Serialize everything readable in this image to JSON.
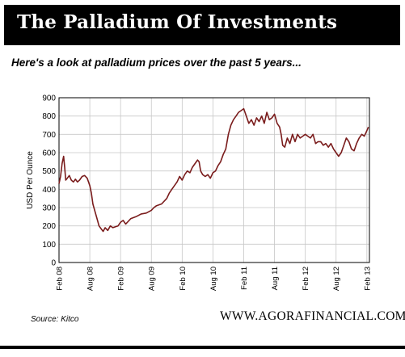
{
  "header": {
    "title": "The Palladium Of Investments"
  },
  "subtitle": "Here's a look at palladium prices over the past 5 years...",
  "source": "Source: Kitco",
  "brand": "WWW.AGORAFINANCIAL.COM",
  "chart_data": {
    "type": "line",
    "title": "",
    "xlabel": "",
    "ylabel": "USD Per Ounce",
    "ylim": [
      0,
      900
    ],
    "yticks": [
      0,
      100,
      200,
      300,
      400,
      500,
      600,
      700,
      800,
      900
    ],
    "xlim": [
      0,
      60.5
    ],
    "xticks": [
      {
        "label": "Feb 08",
        "x": 0
      },
      {
        "label": "Aug 08",
        "x": 6
      },
      {
        "label": "Feb 09",
        "x": 12
      },
      {
        "label": "Aug 09",
        "x": 18
      },
      {
        "label": "Feb 10",
        "x": 24
      },
      {
        "label": "Aug 10",
        "x": 30
      },
      {
        "label": "Feb 11",
        "x": 36
      },
      {
        "label": "Aug 11",
        "x": 42
      },
      {
        "label": "Feb 12",
        "x": 48
      },
      {
        "label": "Aug 12",
        "x": 54
      },
      {
        "label": "Feb 13",
        "x": 60
      }
    ],
    "grid": true,
    "line_color": "#7a1c1c",
    "series": [
      {
        "name": "",
        "x": [
          0,
          0.3,
          0.6,
          0.9,
          1.1,
          1.3,
          1.6,
          2,
          2.4,
          2.8,
          3.2,
          3.6,
          4,
          4.5,
          5,
          5.5,
          6,
          6.3,
          6.6,
          7,
          7.4,
          7.8,
          8.2,
          8.6,
          9,
          9.5,
          10,
          10.5,
          11,
          11.5,
          12,
          12.5,
          13,
          13.5,
          14,
          15,
          16,
          17,
          18,
          18.5,
          19,
          20,
          21,
          21.5,
          22,
          22.5,
          23,
          23.5,
          24,
          24.5,
          25,
          25.5,
          26,
          26.5,
          27,
          27.3,
          27.6,
          28,
          28.5,
          29,
          29.5,
          30,
          30.5,
          31,
          31.5,
          32,
          32.5,
          33,
          33.5,
          34,
          34.5,
          35,
          35.5,
          36,
          36.5,
          37,
          37.5,
          38,
          38.5,
          39,
          39.5,
          40,
          40.5,
          41,
          41.5,
          42,
          42.5,
          43,
          43.3,
          43.6,
          44,
          44.5,
          45,
          45.5,
          46,
          46.5,
          47,
          47.5,
          48,
          48.5,
          49,
          49.5,
          50,
          50.5,
          51,
          51.5,
          52,
          52.5,
          53,
          53.5,
          54,
          54.5,
          55,
          55.5,
          56,
          56.5,
          57,
          57.5,
          58,
          58.5,
          59,
          59.5,
          60,
          60.3
        ],
        "y": [
          430,
          470,
          540,
          580,
          520,
          450,
          460,
          475,
          450,
          440,
          455,
          440,
          450,
          470,
          475,
          460,
          420,
          380,
          320,
          280,
          240,
          200,
          185,
          170,
          190,
          175,
          200,
          190,
          195,
          200,
          220,
          230,
          210,
          225,
          240,
          250,
          265,
          270,
          285,
          300,
          310,
          320,
          350,
          380,
          400,
          420,
          440,
          470,
          450,
          480,
          500,
          490,
          520,
          540,
          560,
          550,
          500,
          480,
          470,
          480,
          460,
          490,
          500,
          530,
          550,
          590,
          620,
          700,
          750,
          780,
          800,
          820,
          830,
          840,
          800,
          760,
          780,
          750,
          790,
          770,
          800,
          760,
          820,
          780,
          790,
          810,
          760,
          740,
          700,
          640,
          630,
          680,
          650,
          700,
          660,
          700,
          680,
          690,
          700,
          690,
          680,
          700,
          650,
          660,
          660,
          640,
          650,
          630,
          650,
          620,
          600,
          580,
          600,
          640,
          680,
          660,
          620,
          610,
          650,
          680,
          700,
          690,
          720,
          740
        ]
      }
    ]
  }
}
